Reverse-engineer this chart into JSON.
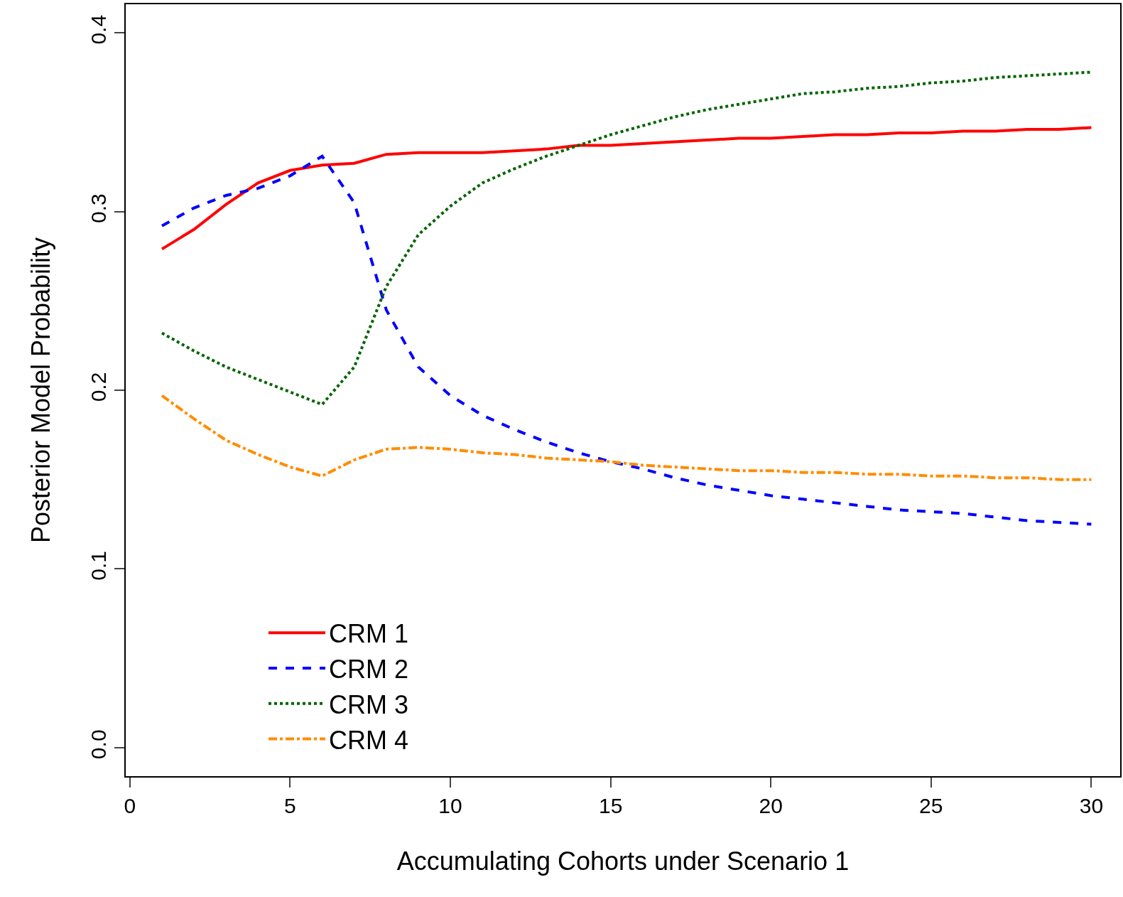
{
  "chart_data": {
    "type": "line",
    "xlabel": "Accumulating Cohorts under Scenario 1",
    "ylabel": "Posterior Model Probability",
    "x": [
      1,
      2,
      3,
      4,
      5,
      6,
      7,
      8,
      9,
      10,
      11,
      12,
      13,
      14,
      15,
      16,
      17,
      18,
      19,
      20,
      21,
      22,
      23,
      24,
      25,
      26,
      27,
      28,
      29,
      30
    ],
    "series": [
      {
        "name": "CRM 1",
        "color": "#ff0000",
        "line_style": "solid",
        "values": [
          0.279,
          0.29,
          0.304,
          0.316,
          0.323,
          0.326,
          0.327,
          0.332,
          0.333,
          0.333,
          0.333,
          0.334,
          0.335,
          0.337,
          0.337,
          0.338,
          0.339,
          0.34,
          0.341,
          0.341,
          0.342,
          0.343,
          0.343,
          0.344,
          0.344,
          0.345,
          0.345,
          0.346,
          0.346,
          0.347
        ]
      },
      {
        "name": "CRM 2",
        "color": "#0000ff",
        "line_style": "dashed",
        "values": [
          0.292,
          0.302,
          0.309,
          0.313,
          0.32,
          0.331,
          0.305,
          0.245,
          0.213,
          0.197,
          0.186,
          0.178,
          0.171,
          0.165,
          0.16,
          0.156,
          0.151,
          0.147,
          0.144,
          0.141,
          0.139,
          0.137,
          0.135,
          0.133,
          0.132,
          0.131,
          0.129,
          0.127,
          0.126,
          0.125
        ]
      },
      {
        "name": "CRM 3",
        "color": "#006400",
        "line_style": "dotted",
        "values": [
          0.232,
          0.222,
          0.213,
          0.206,
          0.199,
          0.192,
          0.213,
          0.258,
          0.287,
          0.303,
          0.316,
          0.324,
          0.331,
          0.337,
          0.343,
          0.348,
          0.353,
          0.357,
          0.36,
          0.363,
          0.366,
          0.367,
          0.369,
          0.37,
          0.372,
          0.373,
          0.375,
          0.376,
          0.377,
          0.378
        ]
      },
      {
        "name": "CRM 4",
        "color": "#ff8c00",
        "line_style": "dashdot",
        "values": [
          0.197,
          0.184,
          0.172,
          0.164,
          0.157,
          0.152,
          0.161,
          0.167,
          0.168,
          0.167,
          0.165,
          0.164,
          0.162,
          0.161,
          0.16,
          0.158,
          0.157,
          0.156,
          0.155,
          0.155,
          0.154,
          0.154,
          0.153,
          0.153,
          0.152,
          0.152,
          0.151,
          0.151,
          0.15,
          0.15
        ]
      }
    ],
    "xlim": [
      -0.13,
      30.9
    ],
    "ylim": [
      -0.016,
      0.416
    ],
    "xticks": [
      0,
      5,
      10,
      15,
      20,
      25,
      30
    ],
    "yticks": [
      {
        "value": 0,
        "label": "0.0"
      },
      0.1,
      0.2,
      0.3,
      0.4
    ],
    "grid": false,
    "legend": "bottom left",
    "marker": "none"
  }
}
